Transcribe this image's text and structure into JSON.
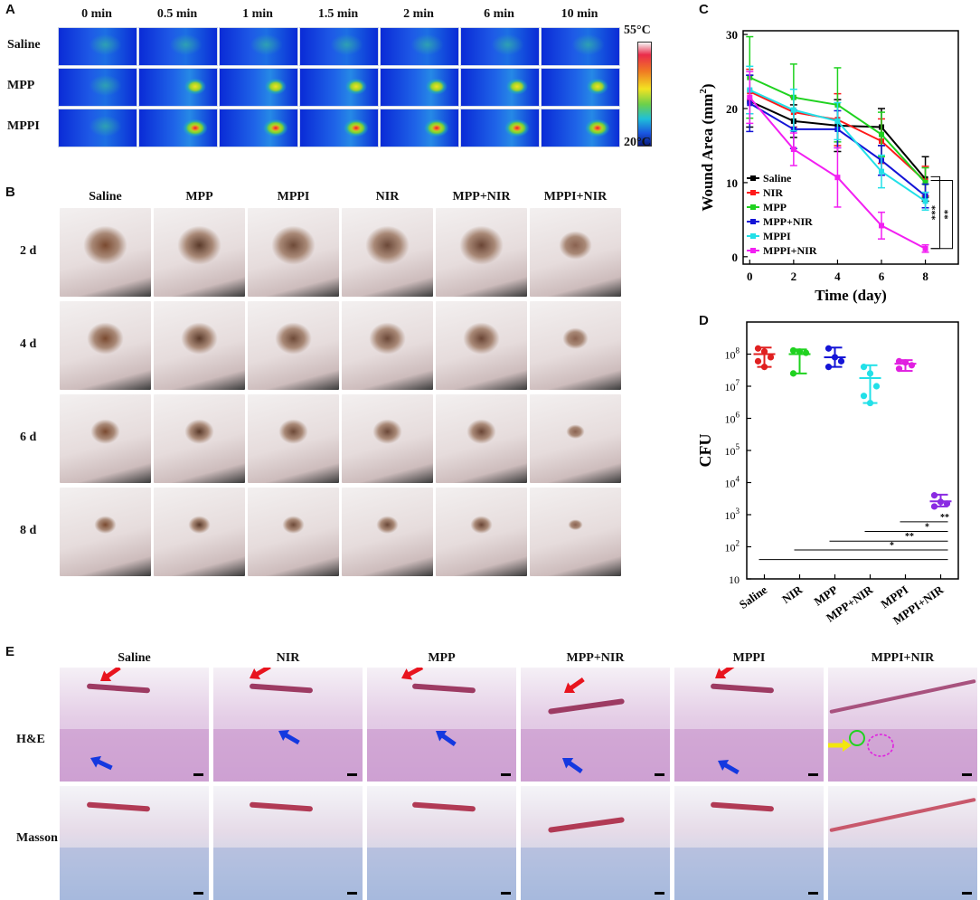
{
  "panels": {
    "A": "A",
    "B": "B",
    "C": "C",
    "D": "D",
    "E": "E"
  },
  "panelA": {
    "columns": [
      "0 min",
      "0.5 min",
      "1 min",
      "1.5 min",
      "2 min",
      "6 min",
      "10 min"
    ],
    "rows": [
      "Saline",
      "MPP",
      "MPPI"
    ],
    "scale_max": "55°C",
    "scale_min": "20°C"
  },
  "panelB": {
    "columns": [
      "Saline",
      "MPP",
      "MPPI",
      "NIR",
      "MPP+NIR",
      "MPPI+NIR"
    ],
    "rows": [
      "2 d",
      "4 d",
      "6 d",
      "8 d"
    ]
  },
  "panelE": {
    "columns": [
      "Saline",
      "NIR",
      "MPP",
      "MPP+NIR",
      "MPPI",
      "MPPI+NIR"
    ],
    "rows": [
      "H&E",
      "Masson"
    ]
  },
  "chart_data": [
    {
      "type": "line",
      "panel": "C",
      "xlabel": "Time (day)",
      "ylabel": "Wound Area (mm",
      "ylabel_sup": "2",
      "ylabel_end": ")",
      "x": [
        0,
        2,
        4,
        6,
        8
      ],
      "xticks": [
        "0",
        "2",
        "4",
        "6",
        "8"
      ],
      "yticks": [
        "0",
        "10",
        "20",
        "30"
      ],
      "xlim": [
        -0.3,
        9.5
      ],
      "ylim": [
        -1,
        30.5
      ],
      "series": [
        {
          "name": "Saline",
          "color": "#000000",
          "values": [
            21,
            18.3,
            17.7,
            17.5,
            10.5
          ],
          "err": [
            3.5,
            2.2,
            3.5,
            2.5,
            3
          ]
        },
        {
          "name": "NIR",
          "color": "#ff1a1a",
          "values": [
            22.3,
            19.5,
            18.5,
            15.6,
            10.2
          ],
          "err": [
            3,
            2,
            3.5,
            3,
            2
          ]
        },
        {
          "name": "MPP",
          "color": "#1fd21f",
          "values": [
            24.2,
            21.5,
            20.5,
            16.5,
            10
          ],
          "err": [
            5.5,
            4.5,
            5,
            3,
            2
          ]
        },
        {
          "name": "MPP+NIR",
          "color": "#1414d6",
          "values": [
            20.7,
            17.2,
            17.2,
            13,
            8.2
          ],
          "err": [
            3.8,
            2.6,
            2.5,
            2,
            1.6
          ]
        },
        {
          "name": "MPPI",
          "color": "#22e0e8",
          "values": [
            22.5,
            19.8,
            18.3,
            11.5,
            7.5
          ],
          "err": [
            3.2,
            2.8,
            2.5,
            2.2,
            1.2
          ]
        },
        {
          "name": "MPPI+NIR",
          "color": "#f21ff2",
          "values": [
            21.5,
            14.5,
            10.7,
            4.2,
            1.1
          ],
          "err": [
            3.5,
            2.2,
            4,
            1.8,
            0.5
          ]
        }
      ],
      "significance": [
        "***",
        "**"
      ]
    },
    {
      "type": "scatter",
      "panel": "D",
      "ylabel": "CFU",
      "yscale": "log",
      "ylim": [
        10,
        1000000000
      ],
      "yticks": [
        {
          "base": "10",
          "exp": ""
        },
        {
          "base": "10",
          "exp": "2"
        },
        {
          "base": "10",
          "exp": "3"
        },
        {
          "base": "10",
          "exp": "4"
        },
        {
          "base": "10",
          "exp": "5"
        },
        {
          "base": "10",
          "exp": "6"
        },
        {
          "base": "10",
          "exp": "7"
        },
        {
          "base": "10",
          "exp": "8"
        }
      ],
      "categories": [
        "Saline",
        "NIR",
        "MPP",
        "MPP+NIR",
        "MPPI",
        "MPPI+NIR"
      ],
      "groups": [
        {
          "name": "Saline",
          "color": "#e02020",
          "points": [
            150000000,
            120000000,
            80000000,
            60000000,
            40000000
          ],
          "mean": 100000000,
          "range": [
            40000000,
            160000000
          ]
        },
        {
          "name": "NIR",
          "color": "#1fd21f",
          "points": [
            130000000,
            120000000,
            110000000,
            25000000
          ],
          "mean": 100000000,
          "range": [
            25000000,
            140000000
          ]
        },
        {
          "name": "MPP",
          "color": "#1414d6",
          "points": [
            150000000,
            80000000,
            60000000,
            40000000
          ],
          "mean": 80000000,
          "range": [
            40000000,
            160000000
          ]
        },
        {
          "name": "MPP+NIR",
          "color": "#22e0e8",
          "points": [
            40000000,
            25000000,
            10000000,
            5000000,
            3000000
          ],
          "mean": 18000000,
          "range": [
            3000000,
            45000000
          ]
        },
        {
          "name": "MPPI",
          "color": "#e020e0",
          "points": [
            60000000,
            55000000,
            45000000,
            35000000
          ],
          "mean": 50000000,
          "range": [
            30000000,
            65000000
          ]
        },
        {
          "name": "MPPI+NIR",
          "color": "#8a2be2",
          "points": [
            4000,
            2500,
            2200,
            1800
          ],
          "mean": 2600,
          "range": [
            1800,
            4200
          ]
        }
      ],
      "significance": [
        "**",
        "*",
        "**",
        "*"
      ]
    }
  ]
}
